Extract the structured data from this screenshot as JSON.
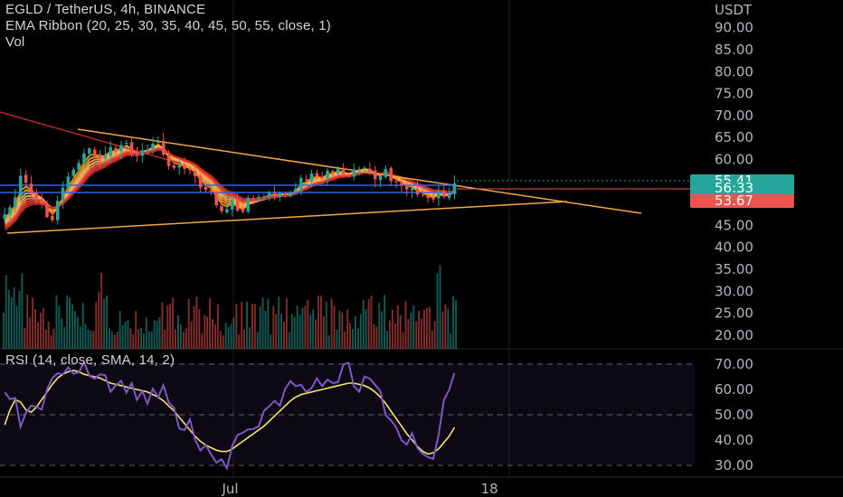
{
  "header": {
    "symbol_line": "EGLD / TetherUS, 4h, BINANCE",
    "indicator_line": "EMA Ribbon (20, 25, 30, 35, 40, 45, 50, 55, close, 1)",
    "volume_line": "Vol"
  },
  "price_axis": {
    "currency": "USDT",
    "ticks": [
      "90.00",
      "85.00",
      "80.00",
      "75.00",
      "70.00",
      "65.00",
      "60.00",
      "45.00",
      "40.00",
      "35.00",
      "30.00",
      "25.00",
      "20.00"
    ],
    "tick_values": [
      90,
      85,
      80,
      75,
      70,
      65,
      60,
      45,
      40,
      35,
      30,
      25,
      20
    ]
  },
  "price_tags": [
    {
      "label": "55.41",
      "value": 55.41,
      "color": "#26a69a"
    },
    {
      "label": "56:33",
      "value": 53.9,
      "color": "#26a69a"
    },
    {
      "label": "53.67",
      "value": 53.67,
      "color": "#ef5350"
    }
  ],
  "rsi": {
    "label": "RSI (14, close, SMA, 14, 2)",
    "ticks": [
      "70.00",
      "60.00",
      "50.00",
      "40.00",
      "30.00"
    ],
    "tick_values": [
      70,
      60,
      50,
      40,
      30
    ],
    "line_color": "#7e57c2",
    "sma_color": "#f5e663"
  },
  "time_axis": {
    "labels": [
      "Jul",
      "18"
    ],
    "bar_index": [
      43,
      92
    ]
  },
  "colors": {
    "up": "#26a69a",
    "down": "#ef5350",
    "trendline": "#f5a742",
    "downtrend": "#b2282b",
    "support": "#2962ff"
  },
  "chart_data": {
    "type": "candlestick",
    "series": [
      {
        "name": "price",
        "close": [
          47.5,
          49.1,
          51.4,
          56.3,
          54.7,
          52.1,
          50.8,
          49.9,
          46.9,
          46.2,
          50.6,
          53.6,
          56.1,
          57.7,
          59.2,
          61.4,
          62.5,
          61.3,
          60.2,
          61.1,
          62.8,
          61.9,
          63.3,
          63.8,
          61.2,
          60.9,
          62.0,
          62.3,
          63.6,
          64.0,
          61.1,
          58.5,
          58.1,
          58.6,
          57.9,
          57.6,
          56.2,
          53.6,
          53.1,
          52.7,
          49.6,
          48.2,
          48.7,
          50.8,
          48.4,
          48.1,
          51.2,
          50.9,
          51.5,
          51.6,
          52.5,
          51.7,
          52.4,
          51.9,
          52.5,
          53.4,
          55.8,
          55.3,
          56.8,
          56.2,
          55.6,
          57.5,
          56.9,
          57.9,
          56.7,
          56.4,
          57.7,
          57.8,
          58.1,
          57.4,
          55.5,
          56.3,
          57.9,
          55.1,
          54.9,
          54.2,
          53.2,
          53.4,
          52.0,
          51.9,
          51.2,
          50.9,
          52.8,
          51.5,
          52.1,
          54.6
        ]
      },
      {
        "name": "rsi",
        "values": [
          58.9,
          56.2,
          56.6,
          45.2,
          50.7,
          53.6,
          53.1,
          52.1,
          60.0,
          64.5,
          66.4,
          66.0,
          68.7,
          66.2,
          66.8,
          70.7,
          65.4,
          64.3,
          66.0,
          65.6,
          59.1,
          61.6,
          63.4,
          58.8,
          62.5,
          55.9,
          59.4,
          54.4,
          60.3,
          56.9,
          61.7,
          54.9,
          52.7,
          44.5,
          44.0,
          48.2,
          40.1,
          35.9,
          38.1,
          34.4,
          31.1,
          32.4,
          28.9,
          37.7,
          42.0,
          42.9,
          44.2,
          44.4,
          45.4,
          51.5,
          53.4,
          55.5,
          53.6,
          60.2,
          63.3,
          61.3,
          61.9,
          59.0,
          60.5,
          64.4,
          61.3,
          63.9,
          62.5,
          62.9,
          69.9,
          70.5,
          61.3,
          59.1,
          65.1,
          64.3,
          61.9,
          59.3,
          49.8,
          47.8,
          45.0,
          39.9,
          38.2,
          42.7,
          36.8,
          34.6,
          33.2,
          32.5,
          41.9,
          55.8,
          59.9,
          66.4
        ]
      },
      {
        "name": "rsi_sma",
        "values": [
          46.0,
          52.0,
          56.0,
          55.0,
          52.0,
          51.0,
          53.0,
          56.0,
          59.0,
          62.0,
          64.5,
          66.0,
          67.0,
          67.5,
          67.0,
          66.0,
          65.5,
          65.0,
          64.5,
          63.5,
          62.5,
          62.0,
          61.5,
          61.0,
          60.5,
          60.0,
          59.5,
          59.0,
          58.0,
          57.0,
          55.5,
          53.5,
          51.5,
          49.0,
          46.5,
          44.0,
          41.5,
          39.5,
          38.0,
          37.0,
          36.0,
          35.5,
          35.5,
          36.5,
          38.0,
          39.5,
          41.0,
          42.5,
          44.0,
          45.5,
          47.5,
          49.5,
          51.5,
          53.5,
          55.5,
          57.0,
          58.0,
          58.5,
          59.0,
          59.5,
          60.0,
          60.5,
          61.0,
          61.5,
          62.0,
          62.5,
          62.5,
          62.0,
          61.5,
          60.5,
          59.0,
          57.0,
          54.5,
          51.5,
          48.5,
          45.5,
          42.5,
          40.0,
          37.5,
          35.5,
          34.5,
          35.0,
          36.5,
          39.0,
          41.5,
          45.0
        ]
      }
    ],
    "ylim": [
      20,
      90
    ],
    "rsi_ylim": [
      30,
      70
    ]
  }
}
